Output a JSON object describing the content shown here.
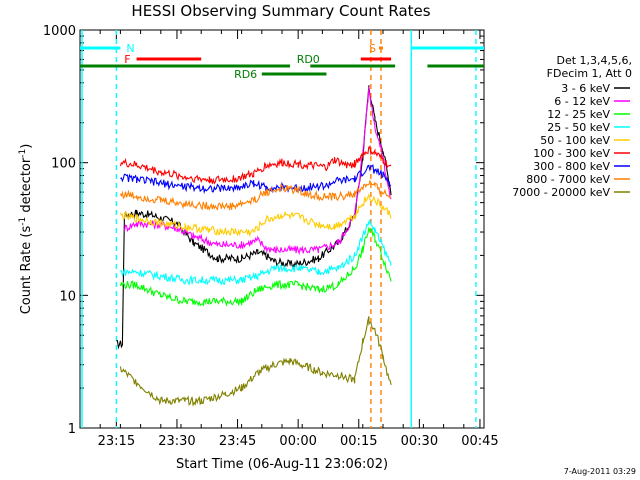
{
  "chart_data": {
    "type": "line",
    "title": "HESSI Observing Summary Count Rates",
    "xlabel": "Start Time (06-Aug-11 23:06:02)",
    "ylabel_main": "Count Rate (s",
    "ylabel_sup1": "-1",
    "ylabel_mid": " detector",
    "ylabel_sup2": "-1",
    "ylabel_end": ")",
    "ylog": true,
    "ylim": [
      1,
      1000
    ],
    "xlim_minutes_after_2306": [
      0,
      100
    ],
    "y_ticks": [
      "1",
      "10",
      "100",
      "1000"
    ],
    "x_ticks": [
      {
        "label": "23:15",
        "min": 9
      },
      {
        "label": "23:30",
        "min": 24
      },
      {
        "label": "23:45",
        "min": 39
      },
      {
        "label": "00:00",
        "min": 54
      },
      {
        "label": "00:15",
        "min": 69
      },
      {
        "label": "00:30",
        "min": 84
      },
      {
        "label": "00:45",
        "min": 99
      }
    ],
    "legend_header": [
      "Det 1,3,4,5,6,",
      "FDecim 1, Att 0"
    ],
    "legend_placement": "right",
    "series": [
      {
        "name": "3 - 6 keV",
        "color": "#000000",
        "points": [
          [
            9,
            4.3
          ],
          [
            10.5,
            4.3
          ],
          [
            11,
            40
          ],
          [
            14,
            42
          ],
          [
            18,
            40
          ],
          [
            24,
            35
          ],
          [
            28,
            25
          ],
          [
            34,
            19
          ],
          [
            40,
            19
          ],
          [
            44,
            21
          ],
          [
            46,
            20
          ],
          [
            48,
            18
          ],
          [
            53,
            17
          ],
          [
            59,
            19
          ],
          [
            64,
            25
          ],
          [
            68,
            40
          ],
          [
            70,
            110
          ],
          [
            71.5,
            380
          ],
          [
            73,
            210
          ],
          [
            75,
            125
          ],
          [
            77,
            60
          ]
        ]
      },
      {
        "name": "6 - 12 keV",
        "color": "#ff00ff",
        "points": [
          [
            11,
            32
          ],
          [
            14,
            35
          ],
          [
            20,
            34
          ],
          [
            24,
            32
          ],
          [
            28,
            28
          ],
          [
            34,
            24
          ],
          [
            40,
            24
          ],
          [
            44,
            26
          ],
          [
            46,
            23
          ],
          [
            48,
            22
          ],
          [
            53,
            22
          ],
          [
            59,
            22
          ],
          [
            64,
            25
          ],
          [
            68,
            40
          ],
          [
            70,
            120
          ],
          [
            71.5,
            360
          ],
          [
            73,
            190
          ],
          [
            75,
            110
          ],
          [
            77,
            50
          ]
        ]
      },
      {
        "name": "12 - 25 keV",
        "color": "#00ff00",
        "points": [
          [
            10,
            12
          ],
          [
            14,
            12
          ],
          [
            20,
            10
          ],
          [
            26,
            9
          ],
          [
            34,
            9
          ],
          [
            40,
            9
          ],
          [
            44,
            11
          ],
          [
            48,
            12
          ],
          [
            54,
            12
          ],
          [
            59,
            11
          ],
          [
            64,
            12
          ],
          [
            68,
            16
          ],
          [
            70,
            22
          ],
          [
            71.5,
            32
          ],
          [
            73,
            27
          ],
          [
            75,
            19
          ],
          [
            77,
            13
          ]
        ]
      },
      {
        "name": "25 - 50 keV",
        "color": "#00ffff",
        "points": [
          [
            10,
            15
          ],
          [
            14,
            15
          ],
          [
            20,
            14
          ],
          [
            26,
            13
          ],
          [
            34,
            13
          ],
          [
            40,
            13
          ],
          [
            44,
            14
          ],
          [
            48,
            16
          ],
          [
            54,
            16
          ],
          [
            59,
            15
          ],
          [
            64,
            16
          ],
          [
            68,
            20
          ],
          [
            70,
            28
          ],
          [
            71.5,
            36
          ],
          [
            73,
            31
          ],
          [
            75,
            23
          ],
          [
            77,
            17
          ]
        ]
      },
      {
        "name": "50 - 100 keV",
        "color": "#ffcc00",
        "points": [
          [
            10,
            40
          ],
          [
            14,
            38
          ],
          [
            20,
            35
          ],
          [
            26,
            33
          ],
          [
            32,
            31
          ],
          [
            38,
            30
          ],
          [
            43,
            30
          ],
          [
            46,
            37
          ],
          [
            50,
            40
          ],
          [
            54,
            39
          ],
          [
            59,
            34
          ],
          [
            63,
            33
          ],
          [
            68,
            40
          ],
          [
            70,
            50
          ],
          [
            71.5,
            56
          ],
          [
            73,
            52
          ],
          [
            75,
            46
          ],
          [
            77,
            40
          ]
        ]
      },
      {
        "name": "100 - 300 keV",
        "color": "#ff0000",
        "points": [
          [
            10,
            100
          ],
          [
            14,
            96
          ],
          [
            20,
            85
          ],
          [
            26,
            78
          ],
          [
            32,
            74
          ],
          [
            38,
            75
          ],
          [
            43,
            82
          ],
          [
            46,
            95
          ],
          [
            50,
            100
          ],
          [
            54,
            98
          ],
          [
            57,
            95
          ],
          [
            61,
            92
          ],
          [
            63,
            105
          ],
          [
            66,
            95
          ],
          [
            68,
            98
          ],
          [
            70,
            115
          ],
          [
            71.5,
            125
          ],
          [
            73,
            118
          ],
          [
            75,
            105
          ],
          [
            77,
            90
          ]
        ]
      },
      {
        "name": "300 - 800 keV",
        "color": "#0000ff",
        "points": [
          [
            10,
            78
          ],
          [
            14,
            75
          ],
          [
            20,
            70
          ],
          [
            26,
            66
          ],
          [
            32,
            64
          ],
          [
            38,
            64
          ],
          [
            43,
            70
          ],
          [
            46,
            65
          ],
          [
            50,
            65
          ],
          [
            54,
            64
          ],
          [
            57,
            66
          ],
          [
            61,
            67
          ],
          [
            63,
            72
          ],
          [
            68,
            75
          ],
          [
            70,
            85
          ],
          [
            71.5,
            92
          ],
          [
            73,
            88
          ],
          [
            75,
            80
          ],
          [
            77,
            70
          ]
        ]
      },
      {
        "name": "800 - 7000 keV",
        "color": "#ff7f00",
        "points": [
          [
            10,
            58
          ],
          [
            14,
            56
          ],
          [
            20,
            52
          ],
          [
            26,
            49
          ],
          [
            32,
            47
          ],
          [
            38,
            47
          ],
          [
            43,
            52
          ],
          [
            46,
            60
          ],
          [
            50,
            64
          ],
          [
            54,
            62
          ],
          [
            57,
            57
          ],
          [
            61,
            55
          ],
          [
            63,
            55
          ],
          [
            68,
            58
          ],
          [
            70,
            65
          ],
          [
            71.5,
            70
          ],
          [
            73,
            66
          ],
          [
            75,
            60
          ],
          [
            77,
            54
          ]
        ]
      },
      {
        "name": "7000 - 20000 keV",
        "color": "#808000",
        "points": [
          [
            10,
            2.8
          ],
          [
            14,
            2.2
          ],
          [
            20,
            1.6
          ],
          [
            26,
            1.6
          ],
          [
            30,
            1.6
          ],
          [
            36,
            1.8
          ],
          [
            40,
            2.0
          ],
          [
            44,
            2.6
          ],
          [
            48,
            3.0
          ],
          [
            52,
            3.2
          ],
          [
            56,
            2.9
          ],
          [
            60,
            2.6
          ],
          [
            64,
            2.5
          ],
          [
            68,
            2.3
          ],
          [
            70,
            4.5
          ],
          [
            71.5,
            6.5
          ],
          [
            73,
            5.5
          ],
          [
            75,
            3.5
          ],
          [
            77,
            2.0
          ]
        ]
      }
    ],
    "flag_bars": [
      {
        "label": "N",
        "color": "#00ffff",
        "segments": [
          [
            0,
            10
          ],
          [
            82,
            100
          ]
        ],
        "level": "top"
      },
      {
        "label": "F",
        "color": "#ff0000",
        "segments": [
          [
            14,
            30
          ],
          [
            69.5,
            77
          ]
        ],
        "level": "mid"
      },
      {
        "label": "S",
        "color": "#ff7f00",
        "segments": [
          [
            74,
            75
          ]
        ],
        "level": "top"
      },
      {
        "label": "RD0",
        "color": "#008000",
        "segments": [
          [
            0,
            52
          ],
          [
            57,
            78
          ],
          [
            86,
            100
          ]
        ],
        "level": "low"
      },
      {
        "label": "RD6",
        "color": "#008000",
        "segments": [
          [
            45,
            61
          ]
        ],
        "level": "lower"
      }
    ],
    "vertical_lines": [
      {
        "min": 9,
        "color": "#00ffff",
        "style": "dashed"
      },
      {
        "min": 82,
        "color": "#00ffff",
        "style": "solid"
      },
      {
        "min": 98,
        "color": "#00ffff",
        "style": "dashed"
      },
      {
        "min": 72,
        "color": "#ff7f00",
        "style": "dashed"
      },
      {
        "min": 74.5,
        "color": "#ff7f00",
        "style": "dashed"
      },
      {
        "min": 0.5,
        "color": "#00ffff",
        "style": "solid"
      }
    ],
    "footer_date": "7-Aug-2011 03:29"
  }
}
